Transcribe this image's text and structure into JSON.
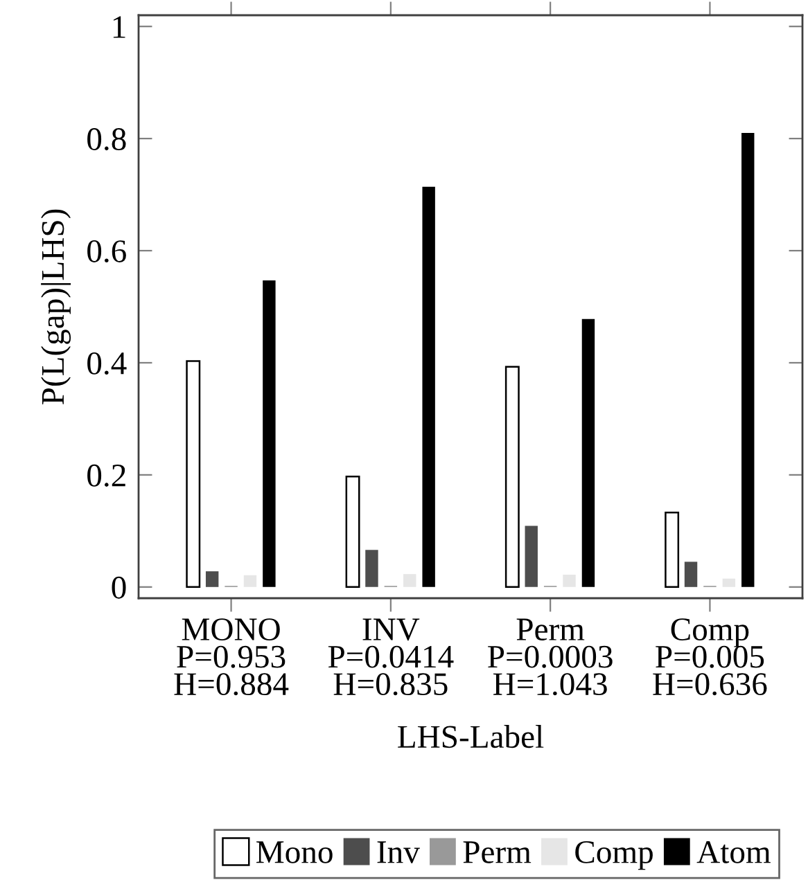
{
  "chart_data": {
    "type": "bar",
    "categories": [
      "MONO\nP=0.953\nH=0.884",
      "INV\nP=0.0414\nH=0.835",
      "Perm\nP=0.0003\nH=1.043",
      "Comp\nP=0.005\nH=0.636"
    ],
    "series": [
      {
        "name": "Mono",
        "color": "#ffffff",
        "values": [
          0.403,
          0.197,
          0.393,
          0.133
        ]
      },
      {
        "name": "Inv",
        "color": "#4d4d4d",
        "values": [
          0.028,
          0.066,
          0.109,
          0.045
        ]
      },
      {
        "name": "Perm",
        "color": "#999999",
        "values": [
          0.002,
          0.002,
          0.002,
          0.002
        ]
      },
      {
        "name": "Comp",
        "color": "#e6e6e6",
        "values": [
          0.021,
          0.023,
          0.022,
          0.015
        ]
      },
      {
        "name": "Atom",
        "color": "#000000",
        "values": [
          0.547,
          0.714,
          0.478,
          0.81
        ]
      }
    ],
    "xlabel": "LHS-Label",
    "ylabel": "P(L(gap)|LHS)",
    "ylim": [
      -0.02,
      1.02
    ],
    "yticks": [
      0,
      0.2,
      0.4,
      0.6,
      0.8,
      1
    ],
    "legend": "bottom"
  }
}
